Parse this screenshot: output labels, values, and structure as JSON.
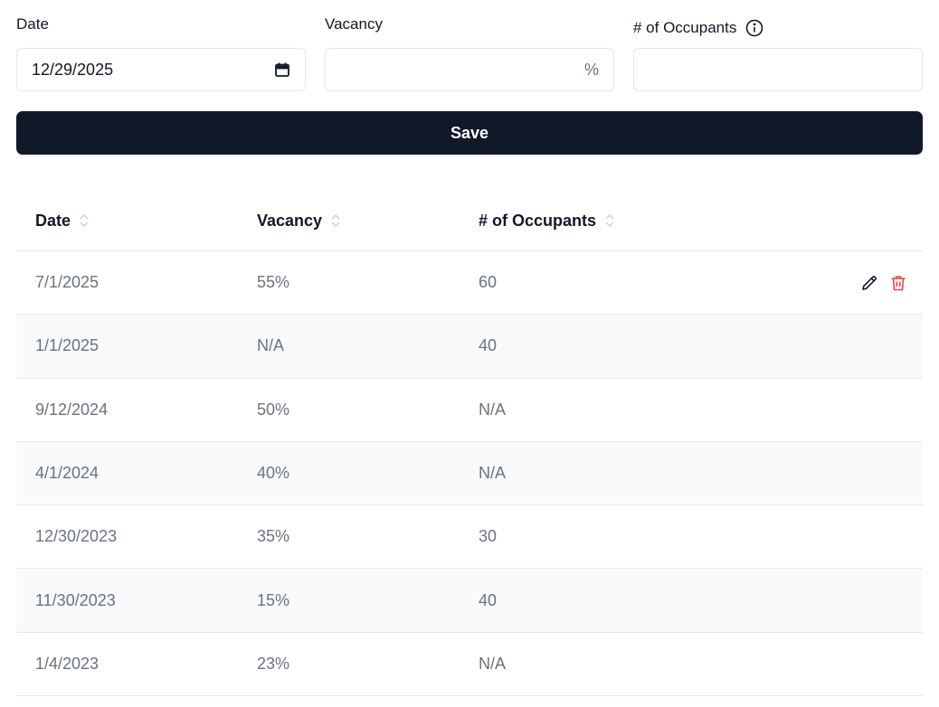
{
  "form": {
    "date": {
      "label": "Date",
      "value": "12/29/2025"
    },
    "vacancy": {
      "label": "Vacancy",
      "value": "",
      "suffix": "%"
    },
    "occupants": {
      "label": "# of Occupants",
      "value": ""
    },
    "save_label": "Save"
  },
  "table": {
    "headers": [
      "Date",
      "Vacancy",
      "# of Occupants"
    ],
    "rows": [
      {
        "date": "7/1/2025",
        "vacancy": "55%",
        "occupants": "60"
      },
      {
        "date": "1/1/2025",
        "vacancy": "N/A",
        "occupants": "40"
      },
      {
        "date": "9/12/2024",
        "vacancy": "50%",
        "occupants": "N/A"
      },
      {
        "date": "4/1/2024",
        "vacancy": "40%",
        "occupants": "N/A"
      },
      {
        "date": "12/30/2023",
        "vacancy": "35%",
        "occupants": "30"
      },
      {
        "date": "11/30/2023",
        "vacancy": "15%",
        "occupants": "40"
      },
      {
        "date": "1/4/2023",
        "vacancy": "23%",
        "occupants": "N/A"
      }
    ]
  },
  "icons": {
    "calendar": "calendar-icon",
    "info": "info-icon",
    "sort": "sort-icon",
    "edit": "pencil-icon",
    "delete": "trash-icon"
  },
  "colors": {
    "primary": "#111827",
    "danger": "#ef4444",
    "muted_text": "#6b7280",
    "border": "#e5e7eb",
    "row_alt": "#f9fafb"
  }
}
